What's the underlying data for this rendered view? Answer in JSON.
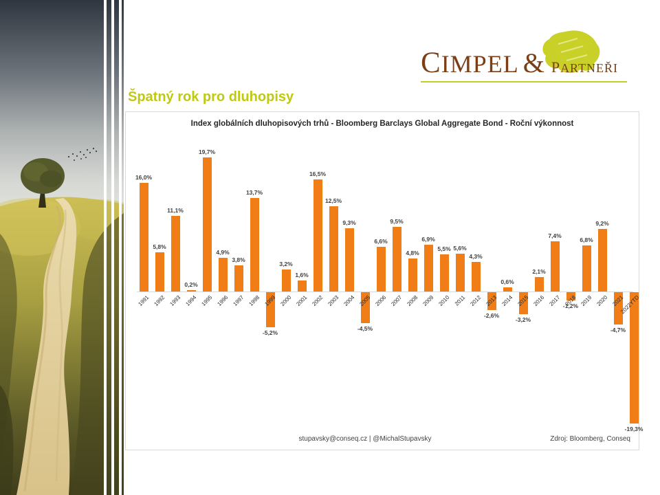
{
  "slide": {
    "title": "Špatný rok pro dluhopisy"
  },
  "logo": {
    "main_initial": "C",
    "main_rest": "IMPEL",
    "ampersand": "&",
    "sub_initial": "P",
    "sub_rest": "ARTNEŘI"
  },
  "colors": {
    "bar_orange": "#F07D16",
    "slide_title_green": "#BFC911",
    "logo_brown": "#7B3E15",
    "logo_green": "#C3CC26",
    "label_gray": "#404040"
  },
  "chart_data": {
    "type": "bar",
    "title": "Index globálních dluhopisových trhů - Bloomberg Barclays Global Aggregate Bond - Roční výkonnost",
    "categories": [
      "1991",
      "1992",
      "1993",
      "1994",
      "1995",
      "1996",
      "1997",
      "1998",
      "1999",
      "2000",
      "2001",
      "2002",
      "2003",
      "2004",
      "2005",
      "2006",
      "2007",
      "2008",
      "2009",
      "2010",
      "2011",
      "2012",
      "2013",
      "2014",
      "2015",
      "2016",
      "2017",
      "2018",
      "2019",
      "2020",
      "2021",
      "2022YTD"
    ],
    "values": [
      16.0,
      5.8,
      11.1,
      0.2,
      19.7,
      4.9,
      3.8,
      13.7,
      -5.2,
      3.2,
      1.6,
      16.5,
      12.5,
      9.3,
      -4.5,
      6.6,
      9.5,
      4.8,
      6.9,
      5.5,
      5.6,
      4.3,
      -2.6,
      0.6,
      -3.2,
      2.1,
      7.4,
      -1.2,
      6.8,
      9.2,
      -4.7,
      -19.3
    ],
    "labels": [
      "16,0%",
      "5,8%",
      "11,1%",
      "0,2%",
      "19,7%",
      "4,9%",
      "3,8%",
      "13,7%",
      "-5,2%",
      "3,2%",
      "1,6%",
      "16,5%",
      "12,5%",
      "9,3%",
      "-4,5%",
      "6,6%",
      "9,5%",
      "4,8%",
      "6,9%",
      "5,5%",
      "5,6%",
      "4,3%",
      "-2,6%",
      "0,6%",
      "-3,2%",
      "2,1%",
      "7,4%",
      "-1,2%",
      "6,8%",
      "9,2%",
      "-4,7%",
      "-19,3%"
    ],
    "ylim": [
      -20,
      20
    ],
    "grid": false,
    "legend": false,
    "bar_color": "#F07D16",
    "footer_left": "stupavsky@conseq.cz   |   @MichalStupavsky",
    "footer_right": "Zdroj: Bloomberg, Conseq"
  }
}
